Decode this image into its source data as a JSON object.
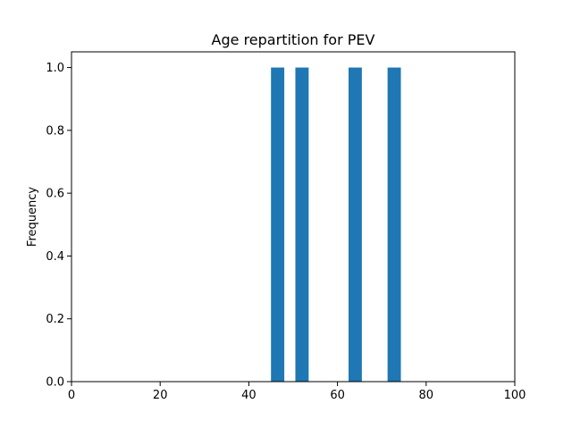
{
  "chart_data": {
    "type": "bar",
    "title": "Age repartition for PEV",
    "xlabel": "",
    "ylabel": "Frequency",
    "xlim": [
      0,
      100
    ],
    "ylim": [
      0,
      1.05
    ],
    "xticks": [
      "0",
      "20",
      "40",
      "60",
      "80",
      "100"
    ],
    "yticks": [
      "0.0",
      "0.2",
      "0.4",
      "0.6",
      "0.8",
      "1.0"
    ],
    "grid": false,
    "bar_color": "#1f77b4",
    "bins": [
      {
        "start": 45,
        "end": 48,
        "value": 1
      },
      {
        "start": 50.5,
        "end": 53.5,
        "value": 1
      },
      {
        "start": 62.5,
        "end": 65.5,
        "value": 1
      },
      {
        "start": 71.3,
        "end": 74.3,
        "value": 1
      }
    ]
  }
}
